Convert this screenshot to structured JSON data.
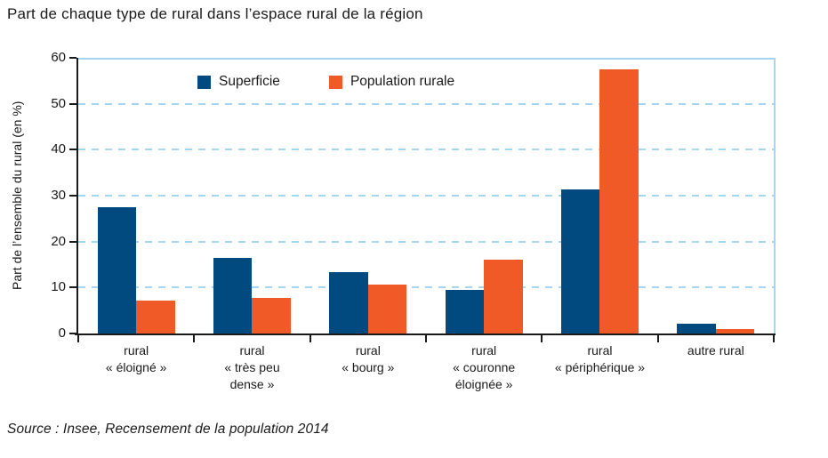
{
  "title": "Part de chaque type de rural dans l’espace rural de la région",
  "source_note": "Source : Insee, Recensement de la population 2014",
  "chart_data": {
    "type": "bar",
    "title": "Part de chaque type de rural dans l’espace rural de la région",
    "ylabel": "Part de l’ensemble du rural (en %)",
    "xlabel": "",
    "ylim": [
      0,
      60
    ],
    "yticks": [
      0,
      10,
      20,
      30,
      40,
      50,
      60
    ],
    "grid": "horizontal-dashed",
    "legend_position": "top-inside",
    "categories": [
      "rural\n« éloigné »",
      "rural\n« très peu\ndense »",
      "rural\n« bourg »",
      "rural\n« couronne\néloignée »",
      "rural\n« périphérique »",
      "autre rural"
    ],
    "series": [
      {
        "name": "Superficie",
        "color": "#004a80",
        "values": [
          27.5,
          16.5,
          13.4,
          9.5,
          31.4,
          2.1
        ]
      },
      {
        "name": "Population rurale",
        "color": "#f05a26",
        "values": [
          7.2,
          7.8,
          10.7,
          16.1,
          57.5,
          1.0
        ]
      }
    ],
    "colors": {
      "grid": "#a5d5ef",
      "plot_border": "#a5d5ef",
      "axis": "#1a1a1a",
      "text": "#1a1a1a"
    }
  }
}
